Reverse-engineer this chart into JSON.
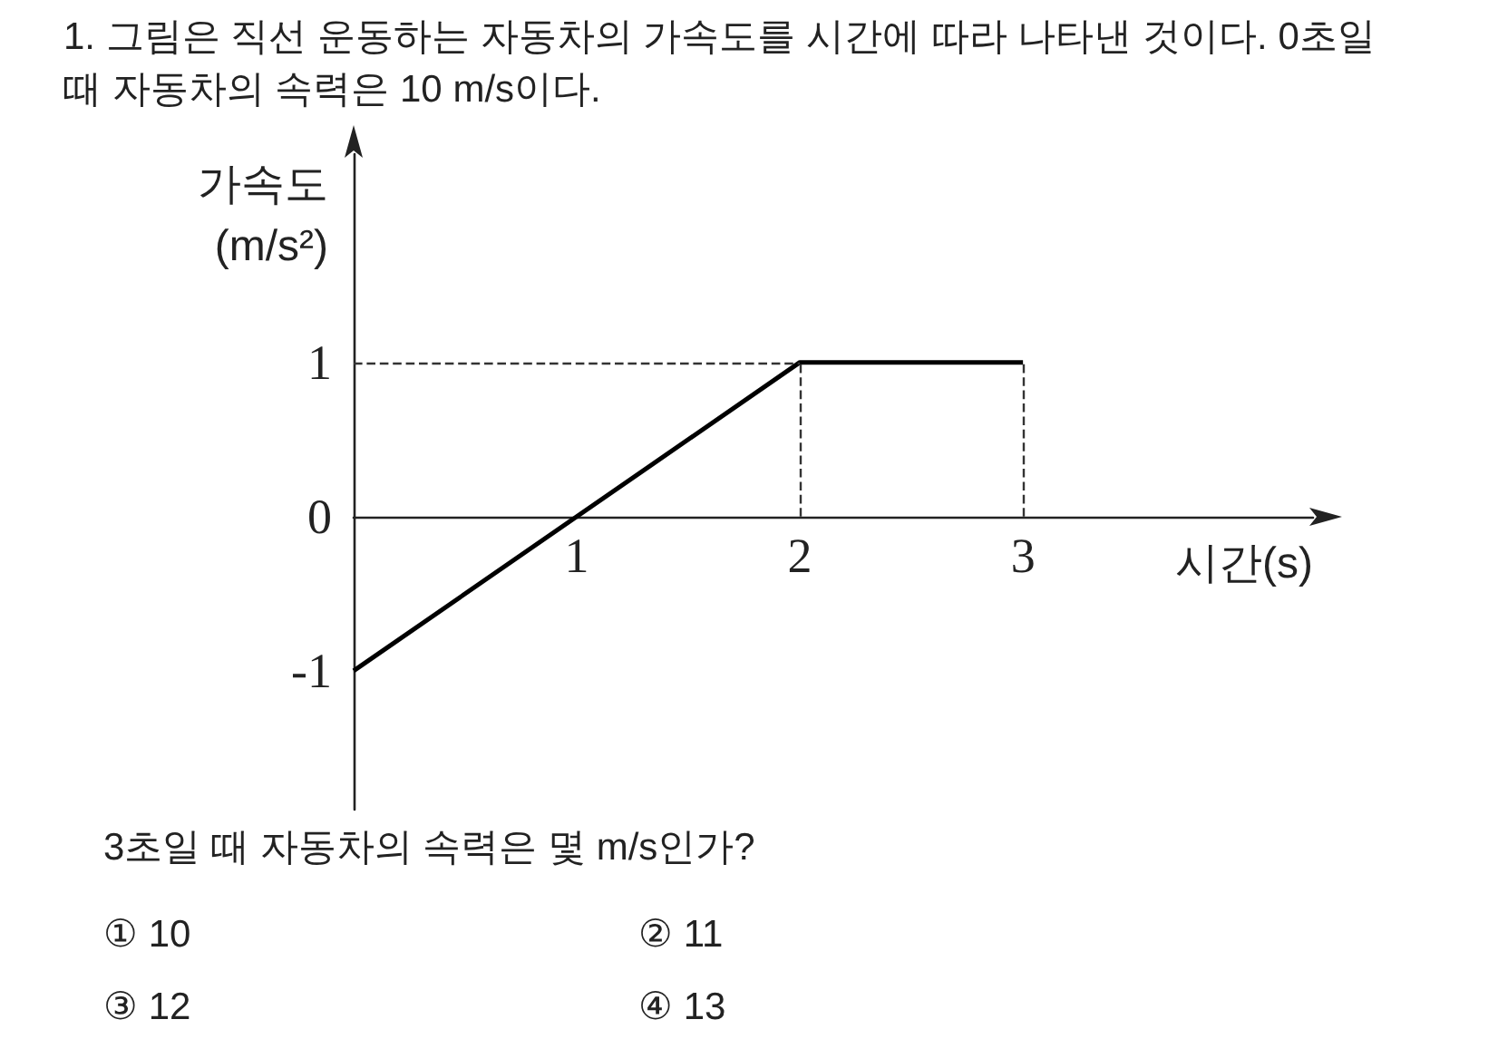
{
  "chart_data": {
    "type": "line",
    "title": "1. 그림은 직선 운동하는 자동차의 가속도를 시간에 따라 나타낸 것이다. 0초일 때 자동차의 속력은 10 m/s이다.",
    "xlabel": "시간(s)",
    "ylabel": "가속도 (m/s²)",
    "x": [
      0,
      2,
      3
    ],
    "series": [
      {
        "color": "#000000",
        "values": [
          -1,
          1,
          1
        ]
      }
    ],
    "xlim": [
      0,
      4.3
    ],
    "xticks": [
      1,
      2,
      3
    ],
    "ylim": [
      -1.9,
      2.35
    ],
    "yticks": [
      -1,
      0,
      1
    ],
    "ref_lines": [
      {
        "axis": "y",
        "value": 1,
        "line_style": "dashed",
        "color": "#333333"
      },
      {
        "axis": "x",
        "value": 2,
        "line_style": "dashed",
        "color": "#333333"
      },
      {
        "axis": "x",
        "value": 3,
        "line_style": "dashed",
        "color": "#333333"
      }
    ],
    "annotations": [
      "3초일 때 자동차의 속력은 몇 m/s인가?",
      "① 10",
      "② 11",
      "③ 12",
      "④ 13"
    ],
    "grid": false,
    "marker": "none",
    "line_style": "solid"
  }
}
